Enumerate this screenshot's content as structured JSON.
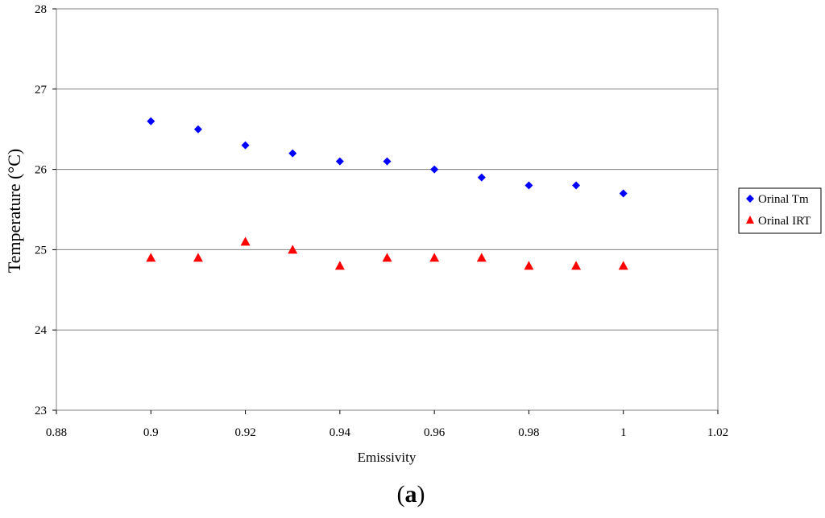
{
  "chart_data": {
    "type": "scatter",
    "title": "",
    "xlabel": "Emissivity",
    "ylabel": "Temperature (°C)",
    "xlim": [
      0.88,
      1.02
    ],
    "ylim": [
      23,
      28
    ],
    "x_ticks": [
      "0.88",
      "0.9",
      "0.92",
      "0.94",
      "0.96",
      "0.98",
      "1",
      "1.02"
    ],
    "y_ticks": [
      "23",
      "24",
      "25",
      "26",
      "27",
      "28"
    ],
    "grid": "horizontal",
    "legend_position": "right",
    "series": [
      {
        "name": "Orinal Tm",
        "marker": "diamond",
        "color": "#0000ff",
        "x": [
          0.9,
          0.91,
          0.92,
          0.93,
          0.94,
          0.95,
          0.96,
          0.97,
          0.98,
          0.99,
          1.0
        ],
        "y": [
          26.6,
          26.5,
          26.3,
          26.2,
          26.1,
          26.1,
          26.0,
          25.9,
          25.8,
          25.8,
          25.7
        ]
      },
      {
        "name": "Orinal IRT",
        "marker": "triangle",
        "color": "#ff0000",
        "x": [
          0.9,
          0.91,
          0.92,
          0.93,
          0.94,
          0.95,
          0.96,
          0.97,
          0.98,
          0.99,
          1.0
        ],
        "y": [
          24.9,
          24.9,
          25.1,
          25.0,
          24.8,
          24.9,
          24.9,
          24.9,
          24.8,
          24.8,
          24.8
        ]
      }
    ]
  },
  "caption": {
    "open": "(",
    "letter": "a",
    "close": ")"
  }
}
